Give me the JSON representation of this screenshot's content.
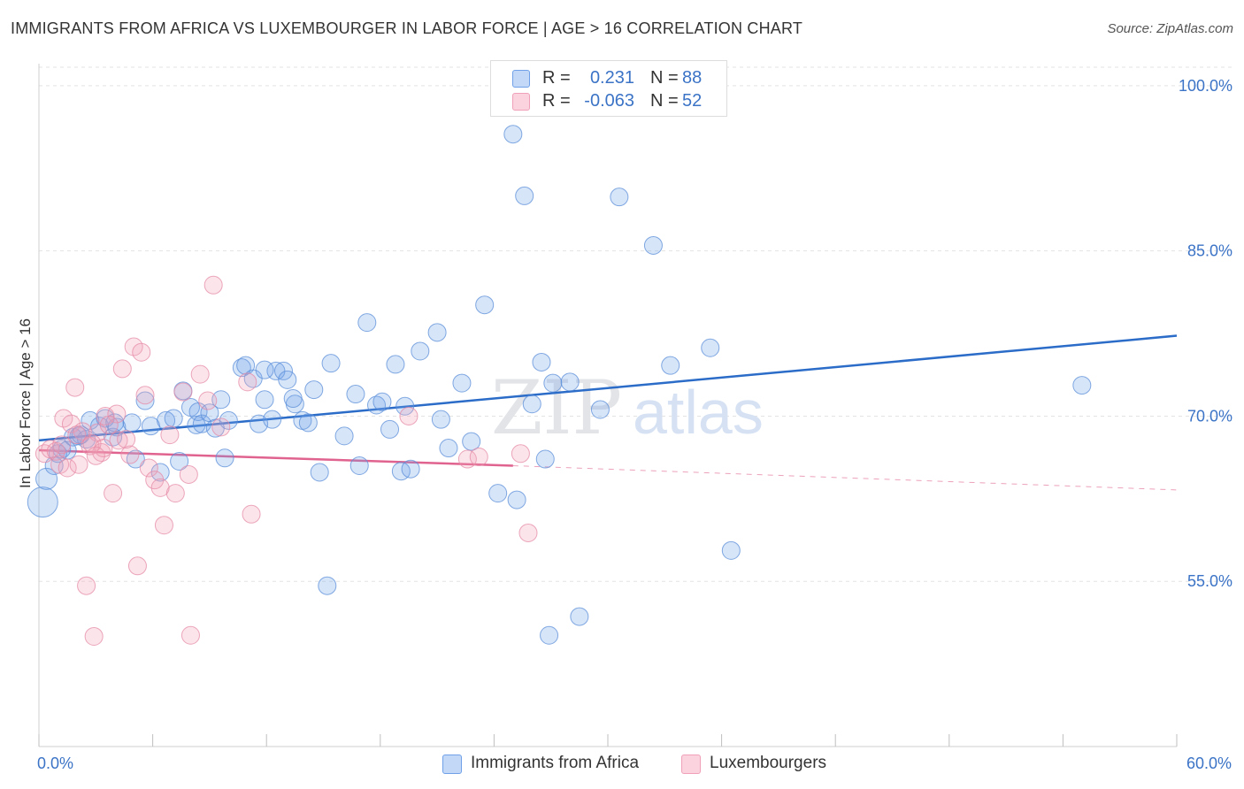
{
  "title": "IMMIGRANTS FROM AFRICA VS LUXEMBOURGER IN LABOR FORCE | AGE > 16 CORRELATION CHART",
  "source": "Source: ZipAtlas.com",
  "watermark": {
    "zip": "ZIP",
    "atlas": "atlas"
  },
  "legend": {
    "rows": [
      {
        "r_label": "R =",
        "r_value": "0.231",
        "n_label": "N =",
        "n_value": "88",
        "color": "#6fa0e8"
      },
      {
        "r_label": "R =",
        "r_value": "-0.063",
        "n_label": "N =",
        "n_value": "52",
        "color": "#f0a0b8"
      }
    ]
  },
  "bottom_legend": [
    {
      "label": "Immigrants from Africa",
      "color": "#6fa0e8"
    },
    {
      "label": "Luxembourgers",
      "color": "#f0a0b8"
    }
  ],
  "chart_data": {
    "type": "scatter",
    "title": "IMMIGRANTS FROM AFRICA VS LUXEMBOURGER IN LABOR FORCE | AGE > 16 CORRELATION CHART",
    "xlabel": "",
    "ylabel": "In Labor Force | Age > 16",
    "xlim": [
      0,
      60
    ],
    "ylim": [
      40,
      102
    ],
    "x_tick_labels": [
      {
        "value": 0,
        "label": "0.0%"
      },
      {
        "value": 60,
        "label": "60.0%"
      }
    ],
    "x_minor_ticks": [
      0,
      6,
      12,
      18,
      24,
      30,
      36,
      42,
      48,
      54,
      60
    ],
    "y_ticks": [
      {
        "value": 100,
        "label": "100.0%"
      },
      {
        "value": 85,
        "label": "85.0%"
      },
      {
        "value": 70,
        "label": "70.0%"
      },
      {
        "value": 55,
        "label": "55.0%"
      }
    ],
    "grid": true,
    "legend_position": "top-center",
    "series": [
      {
        "name": "Immigrants from Africa",
        "color": "#6fa0e8",
        "stroke": "#5a8ed8",
        "trend": {
          "x0": 0,
          "y0": 67.8,
          "x1": 60,
          "y1": 77.3,
          "color": "#2b6cc8"
        },
        "points": [
          [
            0.2,
            62.2
          ],
          [
            0.4,
            64.3
          ],
          [
            0.8,
            65.5
          ],
          [
            1.0,
            66.6
          ],
          [
            1.2,
            67.0
          ],
          [
            1.5,
            66.9
          ],
          [
            1.8,
            68.1
          ],
          [
            2.1,
            68.2
          ],
          [
            2.5,
            67.9
          ],
          [
            2.7,
            69.6
          ],
          [
            3.2,
            69.1
          ],
          [
            3.5,
            69.8
          ],
          [
            3.9,
            68.1
          ],
          [
            4.1,
            69.0
          ],
          [
            4.9,
            69.4
          ],
          [
            5.1,
            66.1
          ],
          [
            5.6,
            71.4
          ],
          [
            5.9,
            69.1
          ],
          [
            6.7,
            69.6
          ],
          [
            6.4,
            64.9
          ],
          [
            7.1,
            69.8
          ],
          [
            7.4,
            65.9
          ],
          [
            7.6,
            72.3
          ],
          [
            8.0,
            70.8
          ],
          [
            8.3,
            69.2
          ],
          [
            8.4,
            70.4
          ],
          [
            8.6,
            69.3
          ],
          [
            9.0,
            70.3
          ],
          [
            9.3,
            68.9
          ],
          [
            9.6,
            71.5
          ],
          [
            10.0,
            69.6
          ],
          [
            10.7,
            74.4
          ],
          [
            10.9,
            74.6
          ],
          [
            11.3,
            73.4
          ],
          [
            11.6,
            69.3
          ],
          [
            11.9,
            71.5
          ],
          [
            12.3,
            69.7
          ],
          [
            12.5,
            74.1
          ],
          [
            12.9,
            74.1
          ],
          [
            13.1,
            73.3
          ],
          [
            13.5,
            71.1
          ],
          [
            13.9,
            69.6
          ],
          [
            14.2,
            69.4
          ],
          [
            14.5,
            72.4
          ],
          [
            14.8,
            64.9
          ],
          [
            15.4,
            74.8
          ],
          [
            16.1,
            68.2
          ],
          [
            16.7,
            72.0
          ],
          [
            16.9,
            65.5
          ],
          [
            17.3,
            78.5
          ],
          [
            17.8,
            71.0
          ],
          [
            18.1,
            71.3
          ],
          [
            18.5,
            68.8
          ],
          [
            18.8,
            74.7
          ],
          [
            19.1,
            65.0
          ],
          [
            19.6,
            65.2
          ],
          [
            20.1,
            75.9
          ],
          [
            21.0,
            77.6
          ],
          [
            21.2,
            69.7
          ],
          [
            21.6,
            67.1
          ],
          [
            22.3,
            73.0
          ],
          [
            22.8,
            67.7
          ],
          [
            23.5,
            80.1
          ],
          [
            24.2,
            63.0
          ],
          [
            25.0,
            95.6
          ],
          [
            25.2,
            62.4
          ],
          [
            25.6,
            90.0
          ],
          [
            26.0,
            71.1
          ],
          [
            26.5,
            74.9
          ],
          [
            26.7,
            66.1
          ],
          [
            26.9,
            50.1
          ],
          [
            27.1,
            73.0
          ],
          [
            28.0,
            73.1
          ],
          [
            28.5,
            51.8
          ],
          [
            29.6,
            70.6
          ],
          [
            30.6,
            89.9
          ],
          [
            32.4,
            85.5
          ],
          [
            33.3,
            74.6
          ],
          [
            35.4,
            76.2
          ],
          [
            36.5,
            57.8
          ],
          [
            9.8,
            66.2
          ],
          [
            15.2,
            54.6
          ],
          [
            19.3,
            70.9
          ],
          [
            4.0,
            69.4
          ],
          [
            2.2,
            68.3
          ],
          [
            11.9,
            74.2
          ],
          [
            55.0,
            72.8
          ],
          [
            13.4,
            71.6
          ]
        ],
        "sizes": {
          "0": 34,
          "1": 24
        }
      },
      {
        "name": "Luxembourgers",
        "color": "#f0a0b8",
        "stroke": "#e58aa6",
        "trend": {
          "x0": 0,
          "y0": 66.9,
          "x1": 25,
          "y1": 65.5,
          "x2": 60,
          "y2": 63.3,
          "color": "#e0628e"
        },
        "points": [
          [
            0.3,
            66.6
          ],
          [
            0.6,
            67.0
          ],
          [
            0.9,
            66.8
          ],
          [
            1.1,
            65.6
          ],
          [
            1.3,
            69.8
          ],
          [
            1.5,
            65.3
          ],
          [
            1.7,
            69.3
          ],
          [
            1.9,
            72.6
          ],
          [
            2.1,
            65.6
          ],
          [
            2.3,
            68.6
          ],
          [
            2.5,
            54.6
          ],
          [
            2.7,
            67.3
          ],
          [
            2.9,
            50.0
          ],
          [
            3.1,
            68.5
          ],
          [
            3.3,
            66.7
          ],
          [
            3.5,
            70.0
          ],
          [
            3.9,
            63.0
          ],
          [
            4.1,
            70.2
          ],
          [
            4.4,
            74.3
          ],
          [
            4.8,
            66.5
          ],
          [
            5.0,
            76.3
          ],
          [
            5.2,
            56.4
          ],
          [
            5.4,
            75.8
          ],
          [
            5.6,
            71.9
          ],
          [
            5.8,
            65.3
          ],
          [
            6.1,
            64.2
          ],
          [
            6.4,
            63.5
          ],
          [
            6.6,
            60.1
          ],
          [
            6.9,
            68.3
          ],
          [
            7.2,
            63.0
          ],
          [
            7.6,
            72.2
          ],
          [
            7.9,
            64.7
          ],
          [
            8.0,
            50.1
          ],
          [
            8.5,
            73.8
          ],
          [
            8.9,
            71.4
          ],
          [
            9.2,
            81.9
          ],
          [
            9.6,
            69.0
          ],
          [
            11.2,
            61.1
          ],
          [
            11.0,
            73.1
          ],
          [
            19.5,
            70.0
          ],
          [
            22.6,
            66.1
          ],
          [
            23.2,
            66.3
          ],
          [
            25.4,
            66.6
          ],
          [
            25.8,
            59.4
          ],
          [
            4.2,
            67.8
          ],
          [
            3.7,
            69.2
          ],
          [
            1.2,
            67.4
          ],
          [
            2.0,
            68.3
          ],
          [
            2.8,
            67.5
          ],
          [
            3.4,
            67.1
          ],
          [
            4.6,
            67.9
          ],
          [
            3.0,
            66.4
          ]
        ]
      }
    ]
  }
}
